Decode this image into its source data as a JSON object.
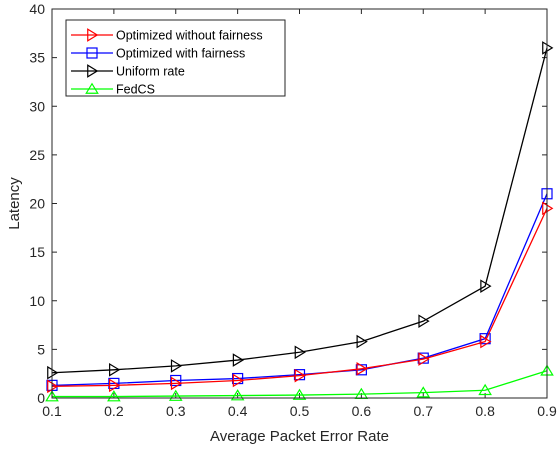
{
  "chart_data": {
    "type": "line",
    "xlabel": "Average Packet Error Rate",
    "ylabel": "Latency",
    "xlim": [
      0.1,
      0.9
    ],
    "ylim": [
      0,
      40
    ],
    "x": [
      0.1,
      0.2,
      0.3,
      0.4,
      0.5,
      0.6,
      0.7,
      0.8,
      0.9
    ],
    "x_ticks": [
      "0.1",
      "0.2",
      "0.3",
      "0.4",
      "0.5",
      "0.6",
      "0.7",
      "0.8",
      "0.9"
    ],
    "y_ticks": [
      "0",
      "5",
      "10",
      "15",
      "20",
      "25",
      "30",
      "35",
      "40"
    ],
    "legend_position": "top-left",
    "grid": false,
    "series": [
      {
        "name": "Optimized without fairness",
        "color": "#ff0000",
        "marker": "triangle-right",
        "values": [
          1.2,
          1.3,
          1.5,
          1.8,
          2.3,
          3.0,
          4.0,
          5.8,
          19.5
        ]
      },
      {
        "name": "Optimized with fairness",
        "color": "#0000ff",
        "marker": "square",
        "values": [
          1.3,
          1.5,
          1.8,
          2.0,
          2.4,
          2.9,
          4.1,
          6.1,
          21.0
        ]
      },
      {
        "name": "Uniform rate",
        "color": "#000000",
        "marker": "triangle-right",
        "values": [
          2.6,
          2.9,
          3.3,
          3.9,
          4.7,
          5.8,
          7.9,
          11.5,
          36.0
        ]
      },
      {
        "name": "FedCS",
        "color": "#00ff00",
        "marker": "triangle-up",
        "values": [
          0.15,
          0.15,
          0.2,
          0.25,
          0.3,
          0.4,
          0.55,
          0.8,
          2.8
        ]
      }
    ]
  }
}
